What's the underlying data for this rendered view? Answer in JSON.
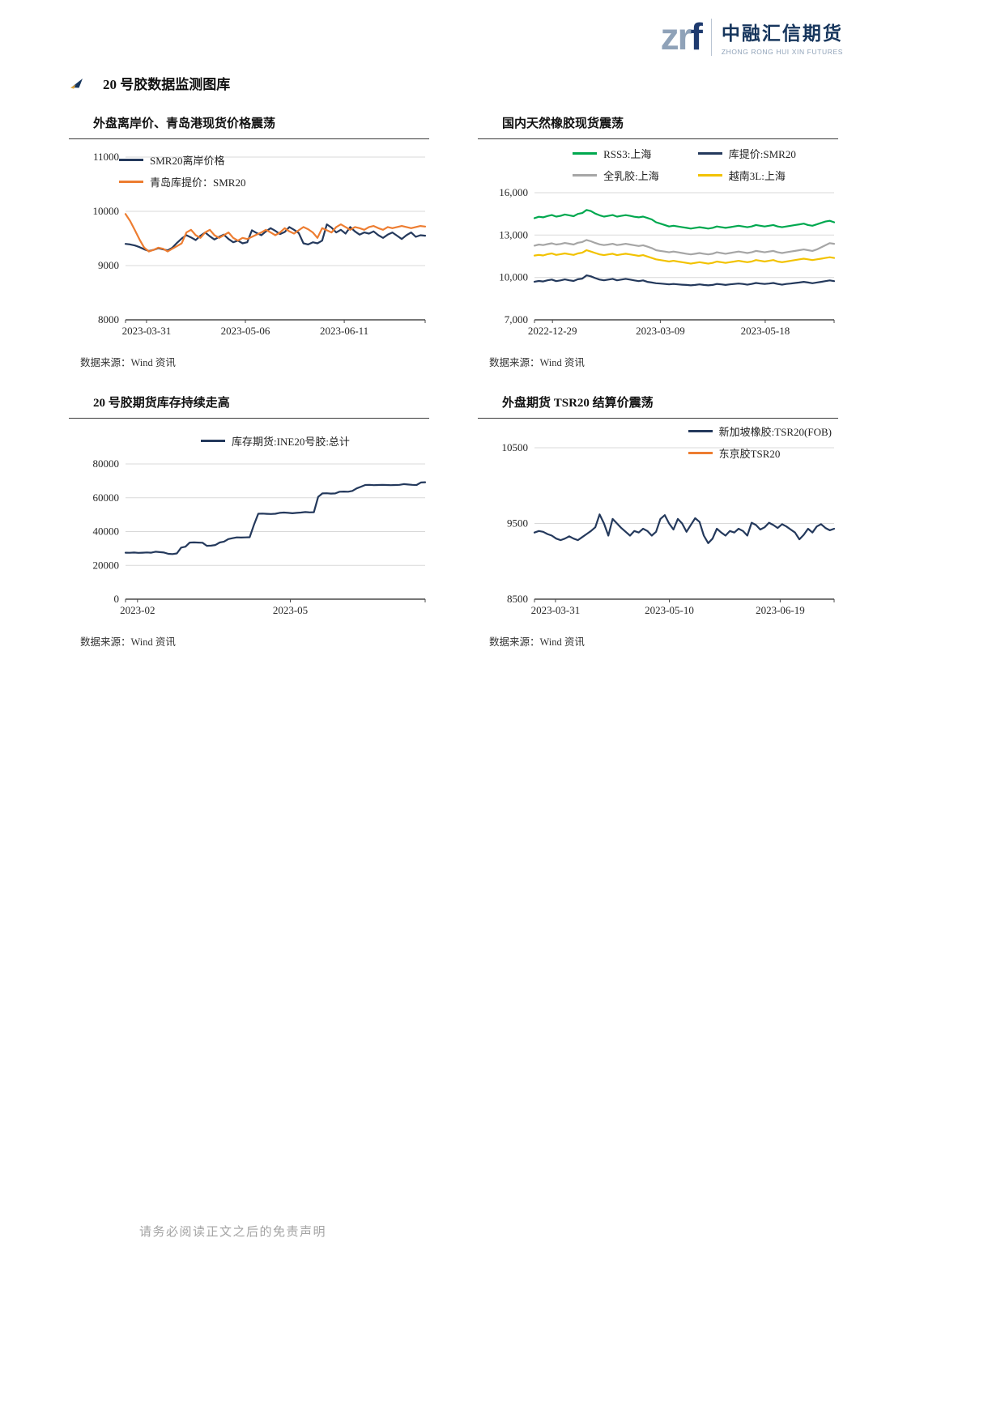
{
  "page": {
    "logo": {
      "mark_zr": "zr",
      "mark_f": "f",
      "brand_cn": "中融汇信期货",
      "brand_en": "ZHONG RONG HUI XIN FUTURES"
    },
    "section_title": "20 号胶数据监测图库",
    "footer_disclaimer": "请务必阅读正文之后的免责声明"
  },
  "chart_data": [
    {
      "type": "line",
      "title": "外盘离岸价、青岛港现货价格震荡",
      "source": "数据来源：Wind 资讯",
      "xlabel": "",
      "ylabel": "",
      "ylim": [
        8000,
        11000
      ],
      "yticks": [
        8000,
        9000,
        10000,
        11000
      ],
      "ytick_labels": [
        "8000",
        "9000",
        "10000",
        "11000"
      ],
      "xtick_labels": [
        "2023-03-31",
        "2023-05-06",
        "2023-06-11"
      ],
      "xtick_pos": [
        0.07,
        0.4,
        0.73
      ],
      "grid": true,
      "legend_position": "top-left",
      "series": [
        {
          "name": "SMR20离岸价格",
          "color": "#24395c",
          "values": [
            9400,
            9390,
            9370,
            9340,
            9300,
            9270,
            9290,
            9320,
            9300,
            9280,
            9330,
            9420,
            9500,
            9560,
            9520,
            9470,
            9550,
            9610,
            9540,
            9480,
            9530,
            9570,
            9490,
            9430,
            9460,
            9410,
            9430,
            9650,
            9600,
            9560,
            9630,
            9690,
            9640,
            9580,
            9620,
            9710,
            9660,
            9600,
            9410,
            9390,
            9430,
            9410,
            9460,
            9760,
            9700,
            9610,
            9660,
            9590,
            9710,
            9630,
            9570,
            9610,
            9590,
            9630,
            9560,
            9510,
            9570,
            9610,
            9550,
            9490,
            9560,
            9610,
            9530,
            9560,
            9550
          ]
        },
        {
          "name": "青岛库提价：SMR20",
          "color": "#ED7D31",
          "values": [
            9950,
            9820,
            9650,
            9480,
            9330,
            9260,
            9290,
            9330,
            9310,
            9260,
            9310,
            9360,
            9410,
            9610,
            9660,
            9560,
            9510,
            9610,
            9660,
            9560,
            9510,
            9560,
            9610,
            9510,
            9460,
            9510,
            9490,
            9530,
            9570,
            9610,
            9660,
            9610,
            9560,
            9610,
            9690,
            9630,
            9590,
            9650,
            9710,
            9670,
            9610,
            9510,
            9690,
            9650,
            9610,
            9710,
            9760,
            9710,
            9660,
            9710,
            9690,
            9660,
            9710,
            9730,
            9690,
            9660,
            9710,
            9690,
            9710,
            9730,
            9710,
            9690,
            9710,
            9730,
            9720
          ]
        }
      ]
    },
    {
      "type": "line",
      "title": "国内天然橡胶现货震荡",
      "source": "数据来源：Wind 资讯",
      "xlabel": "",
      "ylabel": "",
      "ylim": [
        7000,
        16000
      ],
      "yticks": [
        7000,
        10000,
        13000,
        16000
      ],
      "ytick_labels": [
        "7,000",
        "10,000",
        "13,000",
        "16,000"
      ],
      "xtick_labels": [
        "2022-12-29",
        "2023-03-09",
        "2023-05-18"
      ],
      "xtick_pos": [
        0.06,
        0.42,
        0.77
      ],
      "grid": true,
      "legend_position": "top-center-2x2",
      "series": [
        {
          "name": "RSS3:上海",
          "color": "#00a84f",
          "values": [
            14200,
            14300,
            14260,
            14350,
            14420,
            14310,
            14360,
            14460,
            14400,
            14340,
            14500,
            14560,
            14780,
            14700,
            14520,
            14400,
            14310,
            14360,
            14420,
            14310,
            14360,
            14410,
            14360,
            14300,
            14260,
            14310,
            14210,
            14110,
            13910,
            13810,
            13710,
            13610,
            13660,
            13610,
            13560,
            13510,
            13460,
            13510,
            13560,
            13510,
            13460,
            13510,
            13610,
            13560,
            13510,
            13560,
            13610,
            13660,
            13610,
            13560,
            13610,
            13710,
            13660,
            13610,
            13660,
            13710,
            13610,
            13560,
            13610,
            13660,
            13710,
            13760,
            13810,
            13710,
            13660,
            13760,
            13860,
            13960,
            14010,
            13910
          ]
        },
        {
          "name": "库提价:SMR20",
          "color": "#24395c",
          "values": [
            9700,
            9750,
            9720,
            9800,
            9850,
            9740,
            9790,
            9860,
            9800,
            9750,
            9870,
            9920,
            10150,
            10080,
            9950,
            9850,
            9800,
            9850,
            9900,
            9800,
            9850,
            9900,
            9850,
            9790,
            9740,
            9790,
            9690,
            9640,
            9590,
            9570,
            9540,
            9510,
            9540,
            9510,
            9490,
            9470,
            9440,
            9470,
            9510,
            9470,
            9440,
            9470,
            9540,
            9510,
            9470,
            9510,
            9540,
            9570,
            9540,
            9490,
            9540,
            9610,
            9570,
            9540,
            9570,
            9610,
            9540,
            9490,
            9540,
            9570,
            9610,
            9640,
            9690,
            9640,
            9590,
            9640,
            9690,
            9740,
            9790,
            9740
          ]
        },
        {
          "name": "全乳胶:上海",
          "color": "#a6a6a6",
          "values": [
            12250,
            12330,
            12290,
            12360,
            12420,
            12330,
            12370,
            12440,
            12390,
            12330,
            12460,
            12510,
            12650,
            12560,
            12440,
            12340,
            12290,
            12330,
            12380,
            12290,
            12330,
            12380,
            12330,
            12280,
            12230,
            12280,
            12180,
            12080,
            11930,
            11880,
            11830,
            11780,
            11830,
            11780,
            11730,
            11680,
            11630,
            11680,
            11730,
            11680,
            11630,
            11680,
            11780,
            11730,
            11680,
            11730,
            11780,
            11830,
            11780,
            11730,
            11780,
            11880,
            11830,
            11780,
            11830,
            11880,
            11780,
            11730,
            11780,
            11830,
            11880,
            11930,
            11980,
            11930,
            11880,
            11980,
            12130,
            12280,
            12430,
            12380
          ]
        },
        {
          "name": "越南3L:上海",
          "color": "#f2c200",
          "values": [
            11550,
            11600,
            11560,
            11650,
            11700,
            11600,
            11650,
            11700,
            11650,
            11600,
            11700,
            11750,
            11930,
            11830,
            11730,
            11630,
            11580,
            11630,
            11680,
            11580,
            11630,
            11680,
            11630,
            11580,
            11530,
            11580,
            11480,
            11380,
            11280,
            11230,
            11180,
            11130,
            11180,
            11130,
            11080,
            11030,
            10980,
            11030,
            11080,
            11030,
            10980,
            11030,
            11130,
            11080,
            11030,
            11080,
            11130,
            11180,
            11130,
            11080,
            11130,
            11230,
            11180,
            11130,
            11180,
            11230,
            11130,
            11080,
            11130,
            11180,
            11230,
            11280,
            11330,
            11280,
            11230,
            11280,
            11330,
            11380,
            11430,
            11380
          ]
        }
      ]
    },
    {
      "type": "line",
      "title": "20 号胶期货库存持续走高",
      "source": "数据来源：Wind 资讯",
      "xlabel": "",
      "ylabel": "",
      "ylim": [
        0,
        80000
      ],
      "yticks": [
        0,
        20000,
        40000,
        60000,
        80000
      ],
      "ytick_labels": [
        "0",
        "20000",
        "40000",
        "60000",
        "80000"
      ],
      "xtick_labels": [
        "2023-02",
        "2023-05"
      ],
      "xtick_pos": [
        0.04,
        0.55
      ],
      "grid": true,
      "legend_position": "top-center",
      "series": [
        {
          "name": "库存期货:INE20号胶:总计",
          "color": "#24395c",
          "values": [
            27500,
            27450,
            27600,
            27400,
            27500,
            27650,
            27500,
            28050,
            27850,
            27600,
            26850,
            26700,
            27050,
            30500,
            31050,
            33500,
            33600,
            33500,
            33400,
            31550,
            31650,
            32050,
            33550,
            34050,
            35550,
            36050,
            36550,
            36450,
            36550,
            36650,
            44000,
            50550,
            50650,
            50500,
            50400,
            50550,
            51050,
            51250,
            51050,
            50850,
            51050,
            51250,
            51550,
            51350,
            51450,
            60550,
            62550,
            62650,
            62450,
            62550,
            63550,
            63650,
            63550,
            64050,
            65550,
            66550,
            67550,
            67650,
            67450,
            67550,
            67650,
            67550,
            67450,
            67550,
            67650,
            68050,
            67850,
            67650,
            67550,
            69050,
            69150
          ]
        }
      ]
    },
    {
      "type": "line",
      "title": "外盘期货 TSR20 结算价震荡",
      "source": "数据来源：Wind 资讯",
      "xlabel": "",
      "ylabel": "",
      "ylim": [
        8500,
        10500
      ],
      "yticks": [
        8500,
        9500,
        10500
      ],
      "ytick_labels": [
        "8500",
        "9500",
        "10500"
      ],
      "xtick_labels": [
        "2023-03-31",
        "2023-05-10",
        "2023-06-19"
      ],
      "xtick_pos": [
        0.07,
        0.45,
        0.82
      ],
      "grid": true,
      "legend_position": "top-right",
      "series": [
        {
          "name": "新加坡橡胶:TSR20(FOB)",
          "color": "#24395c",
          "values": [
            9380,
            9400,
            9390,
            9360,
            9340,
            9300,
            9280,
            9300,
            9330,
            9300,
            9280,
            9320,
            9360,
            9400,
            9450,
            9620,
            9500,
            9340,
            9560,
            9500,
            9440,
            9390,
            9340,
            9400,
            9380,
            9430,
            9400,
            9340,
            9390,
            9560,
            9610,
            9500,
            9420,
            9560,
            9500,
            9390,
            9480,
            9570,
            9520,
            9340,
            9240,
            9300,
            9430,
            9380,
            9340,
            9400,
            9380,
            9430,
            9400,
            9340,
            9510,
            9480,
            9420,
            9450,
            9510,
            9480,
            9440,
            9490,
            9460,
            9420,
            9380,
            9290,
            9350,
            9430,
            9380,
            9460,
            9490,
            9440,
            9410,
            9430
          ]
        },
        {
          "name": "东京胶TSR20",
          "color": "#ED7D31",
          "values": []
        }
      ]
    }
  ]
}
